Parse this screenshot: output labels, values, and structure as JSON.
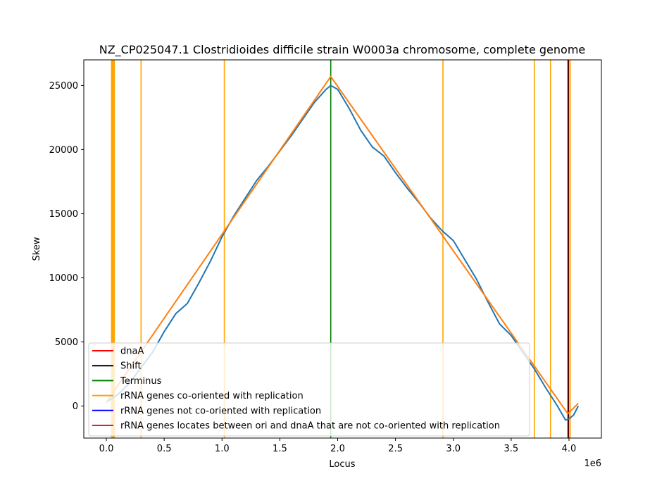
{
  "chart_data": {
    "type": "line",
    "title": "NZ_CP025047.1 Clostridioides difficile strain W0003a chromosome, complete genome",
    "xlabel": "Locus",
    "ylabel": "Skew",
    "x_offset_label": "1e6",
    "x_scale": 1000000,
    "xlim": [
      -0.195,
      4.28
    ],
    "ylim": [
      -2500,
      27000
    ],
    "x_ticks": [
      0.0,
      0.5,
      1.0,
      1.5,
      2.0,
      2.5,
      3.0,
      3.5,
      4.0
    ],
    "x_tick_labels": [
      "0.0",
      "0.5",
      "1.0",
      "1.5",
      "2.0",
      "2.5",
      "3.0",
      "3.5",
      "4.0"
    ],
    "y_ticks": [
      0,
      5000,
      10000,
      15000,
      20000,
      25000
    ],
    "y_tick_labels": [
      "0",
      "5000",
      "10000",
      "15000",
      "20000",
      "25000"
    ],
    "grid": false,
    "legend_position": "lower-left",
    "series": [
      {
        "name": "",
        "color": "#1f77b4",
        "x": [
          0.0,
          0.1,
          0.2,
          0.3,
          0.4,
          0.5,
          0.6,
          0.7,
          0.8,
          0.9,
          1.0,
          1.1,
          1.2,
          1.3,
          1.4,
          1.5,
          1.6,
          1.7,
          1.8,
          1.9,
          1.94,
          2.0,
          2.1,
          2.2,
          2.3,
          2.4,
          2.5,
          2.6,
          2.7,
          2.8,
          2.9,
          3.0,
          3.1,
          3.2,
          3.3,
          3.4,
          3.5,
          3.6,
          3.7,
          3.8,
          3.9,
          3.97,
          4.0,
          4.04,
          4.08
        ],
        "y": [
          300,
          900,
          1800,
          3000,
          4200,
          5800,
          7200,
          8000,
          9600,
          11300,
          13200,
          14800,
          16200,
          17600,
          18700,
          19900,
          21100,
          22400,
          23700,
          24700,
          25000,
          24700,
          23200,
          21500,
          20200,
          19500,
          18200,
          17000,
          15900,
          14700,
          13700,
          12900,
          11400,
          9900,
          8100,
          6400,
          5500,
          4200,
          2900,
          1400,
          0,
          -1100,
          -1000,
          -700,
          0
        ]
      },
      {
        "name": "",
        "color": "#ff7f0e",
        "x": [
          0.0,
          1.94,
          3.99,
          4.08
        ],
        "y": [
          300,
          25700,
          -600,
          200
        ]
      }
    ],
    "vlines": {
      "dnaA": [
        3.99
      ],
      "Shift": [
        3.995
      ],
      "Terminus": [
        1.94
      ],
      "rRNA genes co-oriented with replication": [
        0.045,
        0.048,
        0.051,
        0.054,
        0.057,
        0.06,
        0.063,
        0.066,
        0.069,
        0.3,
        1.02,
        2.91,
        3.7,
        3.84,
        4.01
      ]
    },
    "legend": [
      {
        "label": "dnaA",
        "color": "#ff0000"
      },
      {
        "label": "Shift",
        "color": "#000000"
      },
      {
        "label": "Terminus",
        "color": "#008000"
      },
      {
        "label": "rRNA genes co-oriented with replication",
        "color": "#ffa500"
      },
      {
        "label": "rRNA genes not co-oriented with replication",
        "color": "#0000ff"
      },
      {
        "label": "rRNA genes locates between ori and dnaA that are not co-oriented with replication",
        "color": "#d62728"
      }
    ]
  }
}
